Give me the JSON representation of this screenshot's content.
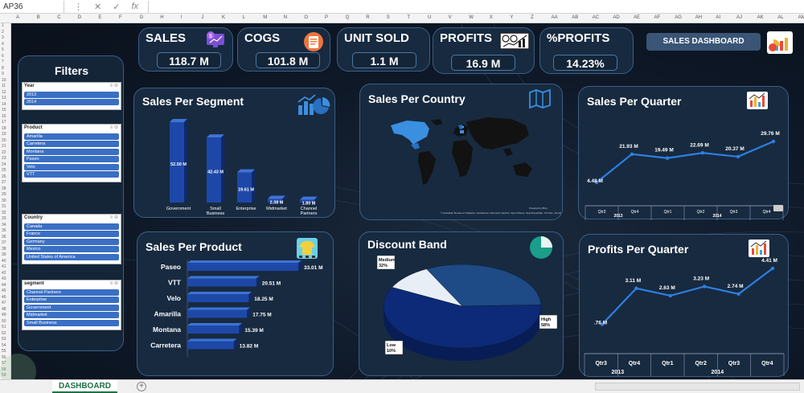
{
  "excel": {
    "namebox": "AP36",
    "columns": [
      "A",
      "B",
      "C",
      "D",
      "E",
      "F",
      "G",
      "H",
      "I",
      "J",
      "K",
      "L",
      "M",
      "N",
      "O",
      "P",
      "Q",
      "R",
      "S",
      "T",
      "U",
      "V",
      "W",
      "X",
      "Y",
      "Z",
      "AA",
      "AB",
      "AC",
      "AD",
      "AE",
      "AF",
      "AG",
      "AH",
      "AI",
      "AJ",
      "AK",
      "AL",
      "AM"
    ],
    "rows": [
      "1",
      "2",
      "3",
      "4",
      "5",
      "6",
      "7",
      "8",
      "9",
      "10",
      "11",
      "12",
      "13",
      "14",
      "15",
      "16",
      "17",
      "18",
      "19",
      "20",
      "21",
      "22",
      "23",
      "24",
      "25",
      "26",
      "27",
      "28",
      "29",
      "30",
      "31",
      "32",
      "33",
      "34",
      "35",
      "36",
      "37",
      "38",
      "39",
      "40",
      "41",
      "42",
      "43",
      "44",
      "45",
      "46",
      "47",
      "48",
      "49",
      "50",
      "51",
      "52",
      "53",
      "54",
      "55",
      "56",
      "57",
      "58",
      "59"
    ],
    "sheet_tab": "DASHBOARD",
    "add_sheet": "+"
  },
  "kpis": [
    {
      "label": "SALES",
      "value": "118.7 M"
    },
    {
      "label": "COGS",
      "value": "101.8 M"
    },
    {
      "label": "UNIT SOLD",
      "value": "1.1 M"
    },
    {
      "label": "PROFITS",
      "value": "16.9 M"
    },
    {
      "label": "%PROFITS",
      "value": "14.23%"
    }
  ],
  "dashboard_button": "SALES DASHBOARD",
  "filters": {
    "title": "Filters",
    "slicers": [
      {
        "title": "Year",
        "items": [
          "2013",
          "2014"
        ]
      },
      {
        "title": "Product",
        "items": [
          "Amarilla",
          "Carretera",
          "Montana",
          "Paseo",
          "Velo",
          "VTT"
        ]
      },
      {
        "title": "Country",
        "items": [
          "Canada",
          "France",
          "Germany",
          "Mexico",
          "United States of America"
        ]
      },
      {
        "title": "segment",
        "items": [
          "Channel Partners",
          "Enterprise",
          "Government",
          "Midmarket",
          "Small Business"
        ]
      }
    ]
  },
  "titles": {
    "segment": "Sales Per Segment",
    "country": "Sales Per Country",
    "quarter": "Sales Per Quarter",
    "product": "Sales Per Product",
    "discount": "Discount Band",
    "profits_quarter": "Profits Per Quarter"
  },
  "map_credit": "© Australian Bureau of Statistics, GeoNames, Microsoft, Navinfo, Open Places, OpenStreetMap, TomTom, Zenrin",
  "map_powered": "Powered by Bing",
  "colors": {
    "accent": "#2e6fd0",
    "card": "#172a40",
    "border": "#3c5f84"
  },
  "chart_data": [
    {
      "type": "bar",
      "id": "segment",
      "title": "Sales Per Segment",
      "categories": [
        "Government",
        "Small Business",
        "Enterprise",
        "Midmarket",
        "Channel Partners"
      ],
      "values": [
        52.5,
        42.43,
        19.61,
        2.38,
        1.8
      ],
      "labels": [
        "52.50 M",
        "42.43 M",
        "19.61 M",
        "2.38 M",
        "1.80 M"
      ]
    },
    {
      "type": "line",
      "id": "quarter",
      "title": "Sales Per Quarter",
      "categories": [
        "Qtr3",
        "Qtr4",
        "Qtr1",
        "Qtr2",
        "Qtr3",
        "Qtr4"
      ],
      "years": [
        {
          "label": "2013",
          "span": 2
        },
        {
          "label": "2014",
          "span": 4
        }
      ],
      "values": [
        4.48,
        21.93,
        19.49,
        22.69,
        20.37,
        29.76
      ],
      "labels": [
        "4.48 M",
        "21.93 M",
        "19.49 M",
        "22.69 M",
        "20.37 M",
        "29.76 M"
      ]
    },
    {
      "type": "bar",
      "id": "product",
      "orientation": "horizontal",
      "title": "Sales Per Product",
      "categories": [
        "Paseo",
        "VTT",
        "Velo",
        "Amarilla",
        "Montana",
        "Carretera"
      ],
      "values": [
        33.01,
        20.51,
        18.25,
        17.75,
        15.39,
        13.82
      ],
      "labels": [
        "33.01 M",
        "20.51 M",
        "18.25 M",
        "17.75 M",
        "15.39 M",
        "13.82 M"
      ]
    },
    {
      "type": "pie",
      "id": "discount",
      "title": "Discount Band",
      "categories": [
        "Medium",
        "High",
        "Low"
      ],
      "values": [
        32,
        58,
        10
      ],
      "labels": [
        "32%",
        "58%",
        "10%"
      ]
    },
    {
      "type": "line",
      "id": "profits_quarter",
      "title": "Profits Per Quarter",
      "categories": [
        "Qtr3",
        "Qtr4",
        "Qtr1",
        "Qtr2",
        "Qtr3",
        "Qtr4"
      ],
      "years": [
        {
          "label": "2013",
          "span": 2
        },
        {
          "label": "2014",
          "span": 4
        }
      ],
      "values": [
        0.76,
        3.11,
        2.63,
        3.23,
        2.74,
        4.41
      ],
      "labels": [
        ".76 M",
        "3.11 M",
        "2.63 M",
        "3.23 M",
        "2.74 M",
        "4.41 M"
      ]
    }
  ]
}
